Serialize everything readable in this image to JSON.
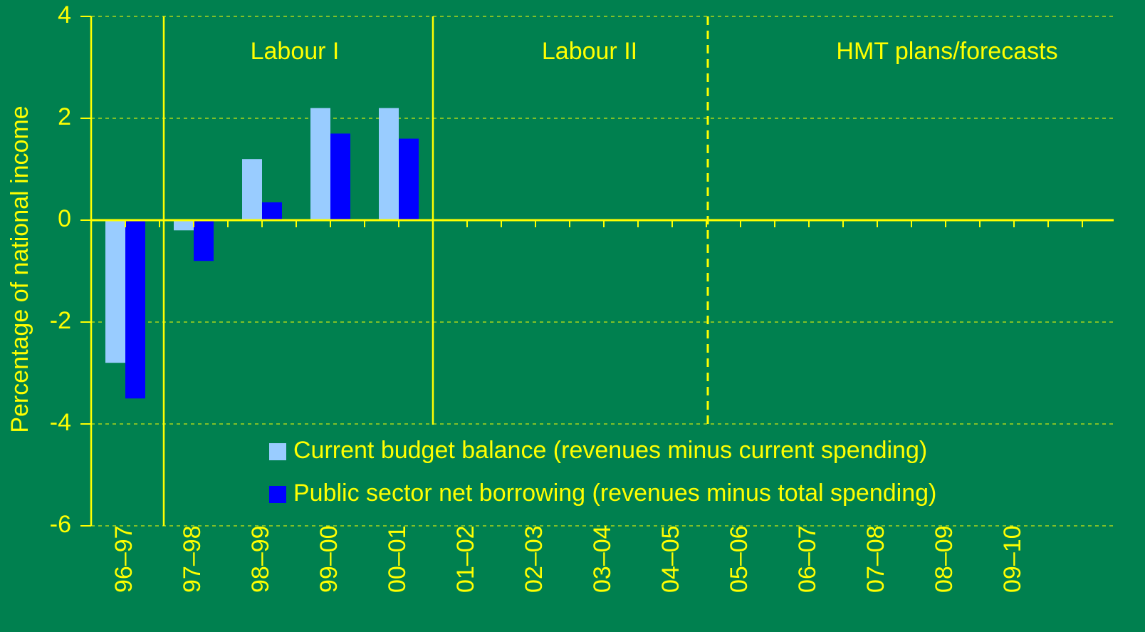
{
  "chart_data": {
    "type": "bar",
    "ylabel": "Percentage of national income",
    "annotations": [
      "Labour I",
      "Labour II",
      "HMT plans/forecasts"
    ],
    "categories": [
      "96–97",
      "97–98",
      "98–99",
      "99–00",
      "00–01",
      "01–02",
      "02–03",
      "03–04",
      "04–05",
      "05–06",
      "06–07",
      "07–08",
      "08–09",
      "09–10",
      null
    ],
    "series": [
      {
        "name": "Current budget balance (revenues minus current spending)",
        "color": "#99ccff",
        "values": [
          -2.8,
          -0.2,
          1.2,
          2.2,
          2.2,
          null,
          null,
          null,
          null,
          null,
          null,
          null,
          null,
          null,
          null
        ]
      },
      {
        "name": "Public sector net borrowing (revenues minus total spending)",
        "color": "#0000ff",
        "values": [
          -3.5,
          -0.8,
          0.35,
          1.7,
          1.6,
          null,
          null,
          null,
          null,
          null,
          null,
          null,
          null,
          null,
          null
        ]
      }
    ],
    "ylim": [
      -6,
      4
    ],
    "yticks": [
      -6,
      -4,
      -2,
      0,
      2,
      4
    ],
    "grid": true
  }
}
